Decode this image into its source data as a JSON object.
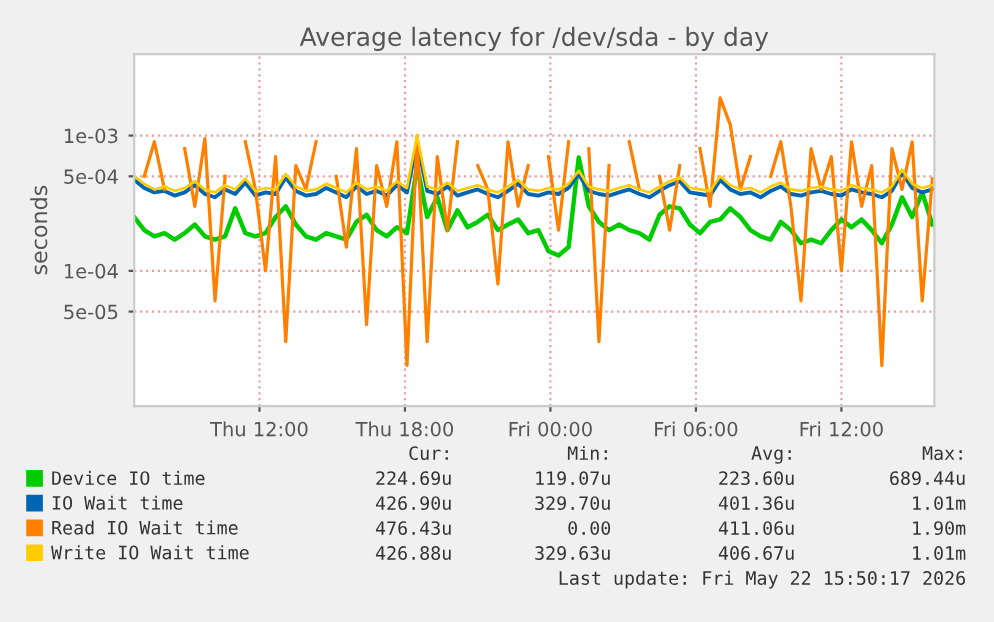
{
  "chart_data": {
    "type": "line",
    "title": "Average latency for /dev/sda - by day",
    "ylabel": "seconds",
    "x": [
      "2026-05-21T06:50",
      "2026-05-21T07:15",
      "2026-05-21T07:40",
      "2026-05-21T08:05",
      "2026-05-21T08:30",
      "2026-05-21T08:55",
      "2026-05-21T09:20",
      "2026-05-21T09:45",
      "2026-05-21T10:10",
      "2026-05-21T10:35",
      "2026-05-21T11:00",
      "2026-05-21T11:25",
      "2026-05-21T11:50",
      "2026-05-21T12:15",
      "2026-05-21T12:40",
      "2026-05-21T13:05",
      "2026-05-21T13:30",
      "2026-05-21T13:55",
      "2026-05-21T14:20",
      "2026-05-21T14:45",
      "2026-05-21T15:10",
      "2026-05-21T15:35",
      "2026-05-21T16:00",
      "2026-05-21T16:25",
      "2026-05-21T16:50",
      "2026-05-21T17:15",
      "2026-05-21T17:40",
      "2026-05-21T18:05",
      "2026-05-21T18:30",
      "2026-05-21T18:55",
      "2026-05-21T19:20",
      "2026-05-21T19:45",
      "2026-05-21T20:10",
      "2026-05-21T20:35",
      "2026-05-21T21:00",
      "2026-05-21T21:25",
      "2026-05-21T21:50",
      "2026-05-21T22:15",
      "2026-05-21T22:40",
      "2026-05-21T23:05",
      "2026-05-21T23:30",
      "2026-05-21T23:55",
      "2026-05-22T00:20",
      "2026-05-22T00:45",
      "2026-05-22T01:10",
      "2026-05-22T01:35",
      "2026-05-22T02:00",
      "2026-05-22T02:25",
      "2026-05-22T02:50",
      "2026-05-22T03:15",
      "2026-05-22T03:40",
      "2026-05-22T04:05",
      "2026-05-22T04:30",
      "2026-05-22T04:55",
      "2026-05-22T05:20",
      "2026-05-22T05:45",
      "2026-05-22T06:10",
      "2026-05-22T06:35",
      "2026-05-22T07:00",
      "2026-05-22T07:25",
      "2026-05-22T07:50",
      "2026-05-22T08:15",
      "2026-05-22T08:40",
      "2026-05-22T09:05",
      "2026-05-22T09:30",
      "2026-05-22T09:55",
      "2026-05-22T10:20",
      "2026-05-22T10:45",
      "2026-05-22T11:10",
      "2026-05-22T11:35",
      "2026-05-22T12:00",
      "2026-05-22T12:25",
      "2026-05-22T12:50",
      "2026-05-22T13:15",
      "2026-05-22T13:40",
      "2026-05-22T14:05",
      "2026-05-22T14:30",
      "2026-05-22T14:55",
      "2026-05-22T15:20",
      "2026-05-22T15:45"
    ],
    "series": [
      {
        "name": "Device IO time",
        "color": "#00cc00",
        "values": [
          0.00025,
          0.0002,
          0.00018,
          0.00019,
          0.00017,
          0.00019,
          0.00022,
          0.00018,
          0.00017,
          0.00018,
          0.00029,
          0.00019,
          0.00018,
          0.00019,
          0.00025,
          0.0003,
          0.00022,
          0.00018,
          0.00017,
          0.00019,
          0.00018,
          0.00017,
          0.00023,
          0.00026,
          0.0002,
          0.00018,
          0.00021,
          0.00019,
          0.0006,
          0.00025,
          0.00035,
          0.0002,
          0.00028,
          0.00021,
          0.00023,
          0.00026,
          0.0002,
          0.00022,
          0.00024,
          0.00019,
          0.0002,
          0.00014,
          0.00013,
          0.00015,
          0.00069,
          0.0003,
          0.00023,
          0.0002,
          0.00022,
          0.0002,
          0.00019,
          0.00017,
          0.00026,
          0.0003,
          0.00029,
          0.00022,
          0.00019,
          0.00023,
          0.00024,
          0.00029,
          0.00025,
          0.0002,
          0.00018,
          0.00017,
          0.00023,
          0.0002,
          0.00016,
          0.00017,
          0.00016,
          0.0002,
          0.00024,
          0.00021,
          0.00024,
          0.0002,
          0.00016,
          0.00022,
          0.00035,
          0.00025,
          0.00038,
          0.00022
        ]
      },
      {
        "name": "IO Wait time",
        "color": "#0066b3",
        "values": [
          0.00047,
          0.00041,
          0.00038,
          0.00039,
          0.00036,
          0.00038,
          0.00043,
          0.00037,
          0.00035,
          0.0004,
          0.00037,
          0.00045,
          0.00036,
          0.00038,
          0.00037,
          0.00049,
          0.00039,
          0.00036,
          0.00037,
          0.00041,
          0.00038,
          0.00035,
          0.00042,
          0.00037,
          0.00039,
          0.00036,
          0.00043,
          0.00038,
          0.0009,
          0.00039,
          0.00037,
          0.00042,
          0.00036,
          0.00038,
          0.0004,
          0.00037,
          0.00035,
          0.00039,
          0.00044,
          0.00037,
          0.00036,
          0.00038,
          0.00037,
          0.00041,
          0.00052,
          0.00039,
          0.00037,
          0.00036,
          0.00038,
          0.0004,
          0.00037,
          0.00035,
          0.00039,
          0.00043,
          0.00046,
          0.00038,
          0.00037,
          0.00036,
          0.00047,
          0.0004,
          0.00037,
          0.00038,
          0.00035,
          0.00039,
          0.00042,
          0.00037,
          0.00036,
          0.00038,
          0.00039,
          0.00037,
          0.00036,
          0.0004,
          0.00038,
          0.00037,
          0.00035,
          0.00039,
          0.00053,
          0.00041,
          0.00038,
          0.0004
        ]
      },
      {
        "name": "Read IO Wait time",
        "color": "#ff8000",
        "values": [
          null,
          0.0005,
          0.0009,
          0.0004,
          null,
          0.0008,
          0.0003,
          0.00095,
          6e-05,
          0.0005,
          null,
          0.0009,
          0.0004,
          0.0001,
          0.0007,
          3e-05,
          0.0006,
          0.0004,
          0.0009,
          null,
          0.0005,
          0.00015,
          0.0008,
          4e-05,
          0.0006,
          0.0003,
          0.0009,
          2e-05,
          0.001,
          3e-05,
          0.0007,
          0.0002,
          0.0009,
          null,
          0.0006,
          0.0004,
          8e-05,
          0.0009,
          0.0003,
          0.0006,
          null,
          0.0007,
          0.0002,
          0.0009,
          null,
          0.0008,
          3e-05,
          0.0006,
          null,
          0.0009,
          0.0004,
          null,
          0.0005,
          0.0002,
          0.0006,
          null,
          0.0008,
          0.0003,
          0.0019,
          0.0012,
          0.0004,
          0.0007,
          null,
          0.0005,
          0.0009,
          0.0003,
          6e-05,
          0.0008,
          0.0004,
          0.0007,
          0.0001,
          0.0009,
          0.0003,
          0.0006,
          2e-05,
          0.0008,
          0.0004,
          0.0009,
          6e-05,
          0.00048
        ]
      },
      {
        "name": "Write IO Wait time",
        "color": "#ffcc00",
        "values": [
          0.0005,
          0.00044,
          0.0004,
          0.00042,
          0.00039,
          0.00041,
          0.00046,
          0.0004,
          0.00038,
          0.00043,
          0.0004,
          0.00048,
          0.00039,
          0.00041,
          0.0004,
          0.00052,
          0.00042,
          0.00039,
          0.0004,
          0.00044,
          0.00041,
          0.00038,
          0.00045,
          0.0004,
          0.00042,
          0.00039,
          0.00046,
          0.00041,
          0.001,
          0.00042,
          0.0004,
          0.00045,
          0.00039,
          0.00041,
          0.00043,
          0.0004,
          0.00038,
          0.00042,
          0.00047,
          0.0004,
          0.00039,
          0.00041,
          0.0004,
          0.00044,
          0.00055,
          0.00042,
          0.0004,
          0.00039,
          0.00041,
          0.00043,
          0.0004,
          0.00038,
          0.00042,
          0.00046,
          0.00049,
          0.00041,
          0.0004,
          0.00039,
          0.0005,
          0.00043,
          0.0004,
          0.00041,
          0.00038,
          0.00042,
          0.00045,
          0.0004,
          0.00039,
          0.00041,
          0.00042,
          0.0004,
          0.00039,
          0.00043,
          0.00041,
          0.0004,
          0.00038,
          0.00042,
          0.00056,
          0.00044,
          0.00041,
          0.00043
        ]
      }
    ],
    "log": true,
    "xlim": [
      "2026-05-21T06:50",
      "2026-05-22T15:50"
    ],
    "xticks": [
      {
        "value": "2026-05-21T12:00",
        "label": "Thu 12:00"
      },
      {
        "value": "2026-05-21T18:00",
        "label": "Thu 18:00"
      },
      {
        "value": "2026-05-22T00:00",
        "label": "Fri 00:00"
      },
      {
        "value": "2026-05-22T06:00",
        "label": "Fri 06:00"
      },
      {
        "value": "2026-05-22T12:00",
        "label": "Fri 12:00"
      }
    ],
    "ylim": [
      1e-05,
      0.004
    ],
    "yticks": [
      {
        "value": 5e-05,
        "label": "5e-05"
      },
      {
        "value": 0.0001,
        "label": "1e-04"
      },
      {
        "value": 0.0005,
        "label": "5e-04"
      },
      {
        "value": 0.001,
        "label": "1e-03"
      }
    ],
    "grid": true,
    "legend": "bottom",
    "annotations": [
      "Cur:",
      "Min:",
      "Avg:",
      "Max:",
      "224.69u",
      "119.07u",
      "223.60u",
      "689.44u",
      "426.90u",
      "329.70u",
      "401.36u",
      "1.01m",
      "476.43u",
      "0.00",
      "411.06u",
      "1.90m",
      "426.88u",
      "329.63u",
      "406.67u",
      "1.01m",
      "Last update: Fri May 22 15:50:17 2026"
    ]
  }
}
